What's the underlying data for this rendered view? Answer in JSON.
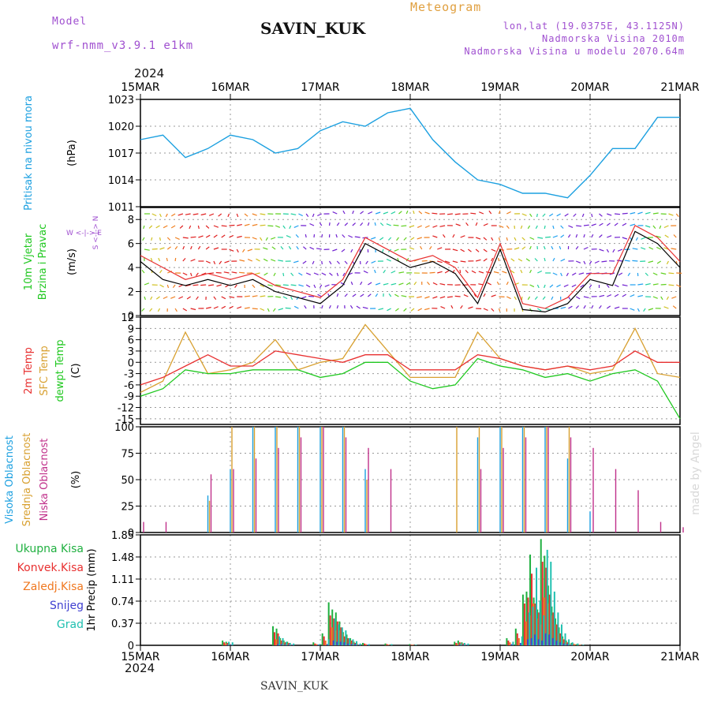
{
  "header": {
    "model_label": "Model",
    "model_name": "wrf-nmm_v3.9.1 e1km",
    "station": "SAVIN_KUK",
    "product": "Meteogram",
    "lonlat": "lon,lat (19.0375E, 43.1125N)",
    "elevation": "Nadmorska Visina 2010m",
    "model_elevation": "Nadmorska Visina u modelu 2070.64m",
    "year_top": "2024",
    "year_bottom": "2024",
    "footer_station": "SAVIN_KUK",
    "credit": "made by Angel"
  },
  "colors": {
    "pressure": "#1ca0e0",
    "wind": "#000000",
    "wind_gust": "#e83030",
    "temp2m": "#e83030",
    "sfc_temp": "#d8a030",
    "dewpt": "#20c820",
    "cloud_high": "#1ca0e0",
    "cloud_mid": "#d8a030",
    "cloud_low": "#c0308a",
    "precip_total": "#20b040",
    "precip_conv": "#e83030",
    "precip_frz": "#f07820",
    "precip_snow": "#4040d0",
    "precip_graupel": "#20c0b0",
    "header_purple": "#a050d0",
    "header_orange": "#e0a040"
  },
  "chart_data": [
    {
      "type": "line",
      "panel": "pressure",
      "ylabel": "Pritisak na nivou mora",
      "unit": "(hPa)",
      "x_ticks": [
        "15MAR",
        "16MAR",
        "17MAR",
        "18MAR",
        "19MAR",
        "20MAR",
        "21MAR"
      ],
      "ylim": [
        1011,
        1023
      ],
      "y_ticks": [
        "1011",
        "1014",
        "1017",
        "1020",
        "1023"
      ],
      "grid": true,
      "x_days": [
        0,
        0.25,
        0.5,
        0.75,
        1.0,
        1.25,
        1.5,
        1.75,
        2.0,
        2.25,
        2.5,
        2.75,
        3.0,
        3.25,
        3.5,
        3.75,
        4.0,
        4.25,
        4.5,
        4.75,
        5.0,
        5.25,
        5.5,
        5.75,
        6.0
      ],
      "series": [
        {
          "values": [
            1018.5,
            1019.0,
            1016.5,
            1017.5,
            1019.0,
            1018.5,
            1017.0,
            1017.5,
            1019.5,
            1020.5,
            1020.0,
            1021.5,
            1022.0,
            1018.5,
            1016.0,
            1014.0,
            1013.5,
            1012.5,
            1012.5,
            1012.0,
            1014.5,
            1017.5,
            1017.5,
            1021.0,
            1021.0
          ]
        }
      ]
    },
    {
      "type": "line",
      "panel": "wind",
      "ylabel": "10m Vjetar",
      "ylabel2": "Brzina i Pravac",
      "unit": "(m/s)",
      "legend_glyph": "W <-|-> E",
      "legend_glyph2": "S <-|-> N",
      "ylim": [
        0,
        9
      ],
      "y_ticks": [
        "0",
        "2",
        "4",
        "6",
        "8"
      ],
      "x_days": [
        0,
        0.25,
        0.5,
        0.75,
        1.0,
        1.25,
        1.5,
        1.75,
        2.0,
        2.25,
        2.5,
        2.75,
        3.0,
        3.25,
        3.5,
        3.75,
        4.0,
        4.25,
        4.5,
        4.75,
        5.0,
        5.25,
        5.5,
        5.75,
        6.0
      ],
      "series": [
        {
          "values": [
            4.5,
            3.0,
            2.5,
            3.0,
            2.5,
            3.0,
            2.0,
            1.5,
            1.0,
            2.5,
            6.0,
            5.0,
            4.0,
            4.5,
            3.5,
            1.0,
            5.5,
            0.5,
            0.3,
            1.0,
            3.0,
            2.5,
            7.0,
            6.0,
            4.0
          ]
        },
        {
          "values": [
            5.0,
            4.0,
            3.0,
            3.5,
            3.0,
            3.5,
            2.5,
            2.0,
            1.5,
            3.0,
            6.5,
            5.5,
            4.5,
            5.0,
            4.0,
            1.5,
            6.0,
            1.0,
            0.6,
            1.5,
            3.5,
            3.5,
            7.5,
            6.5,
            4.5
          ]
        }
      ]
    },
    {
      "type": "line",
      "panel": "temperature",
      "ylabel": "2m Temp",
      "ylabel2": "SFC Temp",
      "ylabel3": "dewpt Temp",
      "unit": "(C)",
      "ylim": [
        -16.5,
        12
      ],
      "y_ticks": [
        "-15",
        "-12",
        "-9",
        "-6",
        "-3",
        "0",
        "3",
        "6",
        "9",
        "12"
      ],
      "x_days": [
        0,
        0.25,
        0.5,
        0.75,
        1.0,
        1.25,
        1.5,
        1.75,
        2.0,
        2.25,
        2.5,
        2.75,
        3.0,
        3.25,
        3.5,
        3.75,
        4.0,
        4.25,
        4.5,
        4.75,
        5.0,
        5.25,
        5.5,
        5.75,
        6.0
      ],
      "series": [
        {
          "values": [
            -6,
            -4,
            -1,
            2,
            -1,
            -1,
            3,
            2,
            1,
            0,
            2,
            2,
            -2,
            -2,
            -2,
            2,
            1,
            -1,
            -2,
            -1,
            -2,
            -1,
            3,
            0,
            0
          ]
        },
        {
          "values": [
            -8,
            -5,
            8,
            -3,
            -2,
            0,
            6,
            -2,
            0,
            1,
            10,
            3,
            -4,
            -4,
            -4,
            8,
            1,
            -1,
            -2,
            -1,
            -3,
            -2,
            9,
            -3,
            -4
          ]
        },
        {
          "values": [
            -9,
            -7,
            -2,
            -3,
            -3,
            -2,
            -2,
            -2,
            -4,
            -3,
            0,
            0,
            -5,
            -7,
            -6,
            1,
            -1,
            -2,
            -4,
            -3,
            -5,
            -3,
            -2,
            -5,
            -15
          ]
        }
      ]
    },
    {
      "type": "bar",
      "panel": "cloud",
      "ylabel": "Visoka Oblacnost",
      "ylabel2": "Srednja Oblacnost",
      "ylabel3": "Niska Oblacnost",
      "unit": "(%)",
      "ylim": [
        0,
        100
      ],
      "y_ticks": [
        "0",
        "25",
        "50",
        "75",
        "100"
      ],
      "x_days": [
        0,
        0.25,
        0.5,
        0.75,
        1.0,
        1.25,
        1.5,
        1.75,
        2.0,
        2.25,
        2.5,
        2.75,
        3.0,
        3.25,
        3.5,
        3.75,
        4.0,
        4.25,
        4.5,
        4.75,
        5.0,
        5.25,
        5.5,
        5.75,
        6.0
      ],
      "series": [
        {
          "values": [
            0,
            0,
            0,
            35,
            60,
            100,
            100,
            100,
            100,
            100,
            60,
            0,
            0,
            0,
            0,
            90,
            100,
            100,
            100,
            70,
            20,
            0,
            0,
            0,
            0
          ]
        },
        {
          "values": [
            0,
            0,
            0,
            30,
            100,
            100,
            100,
            100,
            100,
            100,
            50,
            0,
            0,
            0,
            100,
            100,
            100,
            100,
            100,
            100,
            0,
            0,
            0,
            0,
            0
          ]
        },
        {
          "values": [
            10,
            10,
            0,
            55,
            60,
            70,
            80,
            90,
            100,
            90,
            80,
            60,
            0,
            0,
            0,
            60,
            80,
            90,
            100,
            90,
            80,
            60,
            40,
            10,
            5
          ]
        }
      ]
    },
    {
      "type": "bar",
      "panel": "precipitation",
      "ylabel": "1hr Precip (mm)",
      "legend": [
        "Ukupna Kisa",
        "Konvek.Kisa",
        "Zaledj.Kisa",
        "Snijeg",
        "Grad"
      ],
      "ylim": [
        0,
        1.85
      ],
      "y_ticks": [
        "0",
        "0.37",
        "0.74",
        "1.11",
        "1.48",
        "1.85"
      ],
      "x_days": [
        0.94,
        0.98,
        1.5,
        1.54,
        1.58,
        1.62,
        1.66,
        1.95,
        2.05,
        2.12,
        2.16,
        2.2,
        2.24,
        2.28,
        2.32,
        2.36,
        2.4,
        2.5,
        2.75,
        3.02,
        3.52,
        3.56,
        3.6,
        4.1,
        4.2,
        4.28,
        4.32,
        4.36,
        4.4,
        4.44,
        4.48,
        4.52,
        4.56,
        4.6,
        4.64,
        4.68,
        4.72,
        4.76,
        4.82,
        4.88
      ],
      "series": [
        {
          "values": [
            0.08,
            0.06,
            0.32,
            0.28,
            0.12,
            0.08,
            0.06,
            0.05,
            0.2,
            0.72,
            0.6,
            0.55,
            0.4,
            0.22,
            0.18,
            0.12,
            0.06,
            0.04,
            0.03,
            0.02,
            0.06,
            0.08,
            0.05,
            0.12,
            0.28,
            0.85,
            0.9,
            1.52,
            0.8,
            0.6,
            1.78,
            1.5,
            1.0,
            0.65,
            0.45,
            0.3,
            0.15,
            0.08,
            0.04,
            0.02
          ]
        },
        {
          "values": [
            0.05,
            0.04,
            0.22,
            0.2,
            0.08,
            0.05,
            0.04,
            0.03,
            0.15,
            0.5,
            0.45,
            0.4,
            0.3,
            0.15,
            0.12,
            0.08,
            0.04,
            0.03,
            0.02,
            0.01,
            0.04,
            0.05,
            0.03,
            0.08,
            0.2,
            0.7,
            0.8,
            1.2,
            0.7,
            0.55,
            1.4,
            1.3,
            0.85,
            0.55,
            0.35,
            0.2,
            0.1,
            0.05,
            0.03,
            0.01
          ]
        },
        {
          "values": [
            0.03,
            0.02,
            0.1,
            0.1,
            0.05,
            0.03,
            0.02,
            0.02,
            0.08,
            0.3,
            0.25,
            0.25,
            0.2,
            0.1,
            0.08,
            0.05,
            0.03,
            0.02,
            0.01,
            0.01,
            0.02,
            0.03,
            0.02,
            0.05,
            0.12,
            0.4,
            0.5,
            0.7,
            0.45,
            0.35,
            0.8,
            0.7,
            0.5,
            0.35,
            0.2,
            0.12,
            0.06,
            0.03,
            0.02,
            0.01
          ]
        },
        {
          "values": [
            0.01,
            0.01,
            0.02,
            0.02,
            0.01,
            0.01,
            0.01,
            0.01,
            0.02,
            0.08,
            0.06,
            0.06,
            0.05,
            0.03,
            0.02,
            0.02,
            0.01,
            0.01,
            0.0,
            0.0,
            0.01,
            0.01,
            0.01,
            0.02,
            0.04,
            0.1,
            0.12,
            0.18,
            0.1,
            0.08,
            0.2,
            0.18,
            0.12,
            0.08,
            0.05,
            0.03,
            0.02,
            0.01,
            0.0,
            0.0
          ]
        },
        {
          "values": [
            0.06,
            0.05,
            0.15,
            0.12,
            0.06,
            0.04,
            0.03,
            0.02,
            0.1,
            0.45,
            0.35,
            0.3,
            0.25,
            0.12,
            0.1,
            0.07,
            0.03,
            0.02,
            0.02,
            0.01,
            0.03,
            0.04,
            0.03,
            0.06,
            0.15,
            0.55,
            0.65,
            1.3,
            0.75,
            0.5,
            1.6,
            1.4,
            0.9,
            0.55,
            0.35,
            0.2,
            0.1,
            0.05,
            0.03,
            0.01
          ]
        }
      ]
    }
  ]
}
